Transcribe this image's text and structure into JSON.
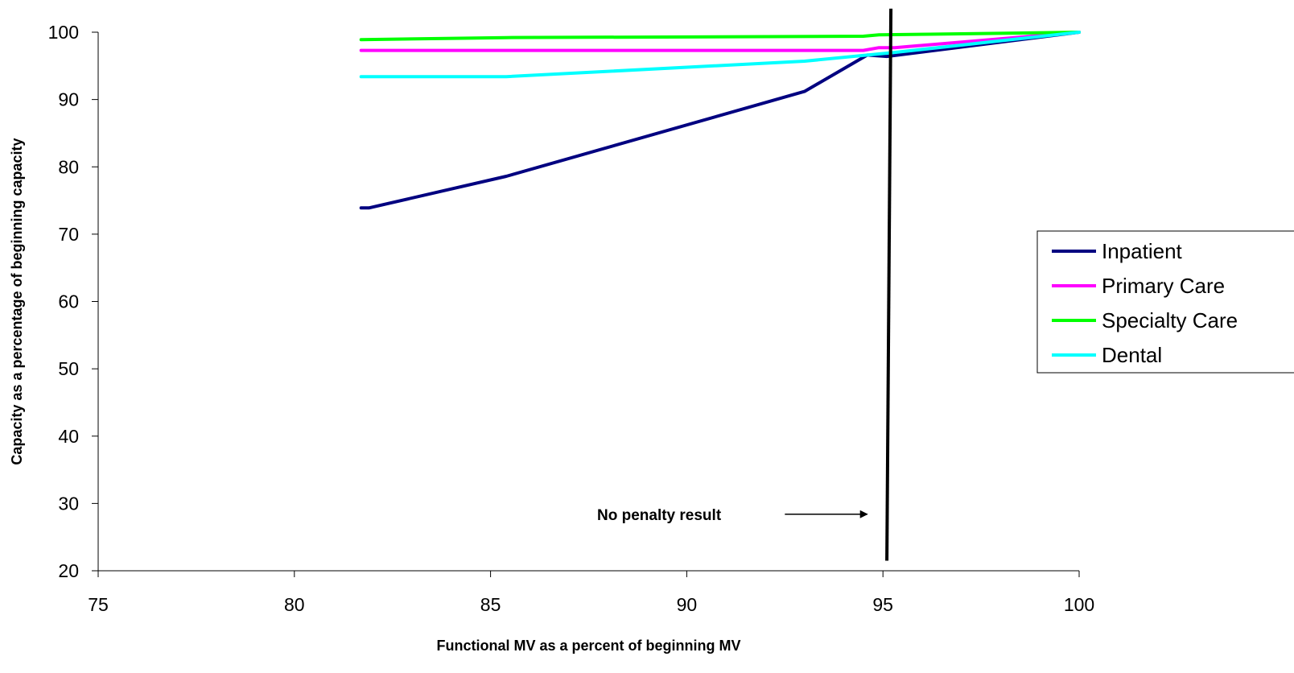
{
  "chart_data": {
    "type": "line",
    "title": "",
    "xlabel": "Functional MV as a percent of beginning MV",
    "ylabel": "Capacity as a percentage of beginning capacity",
    "xlim": [
      75,
      100
    ],
    "ylim": [
      20,
      100
    ],
    "x_ticks": [
      75,
      80,
      85,
      90,
      95,
      100
    ],
    "y_ticks": [
      20,
      30,
      40,
      50,
      60,
      70,
      80,
      90,
      100
    ],
    "grid": false,
    "legend_position": "right",
    "series": [
      {
        "name": "Inpatient",
        "color": "#000080",
        "x": [
          81.7,
          81.9,
          85.4,
          93.0,
          94.6,
          95.1,
          100
        ],
        "y": [
          73.9,
          73.9,
          78.6,
          91.2,
          96.6,
          96.4,
          100
        ]
      },
      {
        "name": "Primary Care",
        "color": "#ff00ff",
        "x": [
          81.7,
          94.5,
          94.9,
          95.3,
          100
        ],
        "y": [
          97.3,
          97.3,
          97.7,
          97.7,
          100
        ]
      },
      {
        "name": "Specialty Care",
        "color": "#00ff00",
        "x": [
          81.7,
          85.4,
          94.5,
          94.9,
          96.2,
          100
        ],
        "y": [
          98.9,
          99.2,
          99.4,
          99.6,
          99.7,
          100
        ]
      },
      {
        "name": "Dental",
        "color": "#00ffff",
        "x": [
          81.7,
          85.4,
          93.0,
          94.6,
          95.3,
          100
        ],
        "y": [
          93.4,
          93.4,
          95.7,
          96.6,
          97.0,
          100
        ]
      }
    ],
    "reference_line": {
      "x": 95.1,
      "y_range": [
        21.5,
        103.5
      ],
      "color": "#000000"
    },
    "annotation": {
      "text": "No penalty result",
      "arrow_x": [
        92.5,
        94.6
      ],
      "arrow_y": 28.4
    }
  }
}
